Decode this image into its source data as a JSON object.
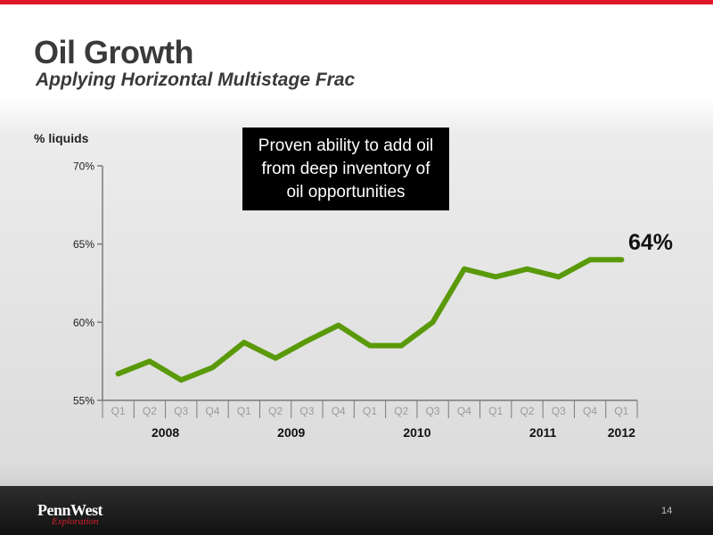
{
  "header": {
    "title": "Oil Growth",
    "subtitle": "Applying Horizontal Multistage Frac"
  },
  "callout": {
    "text": "Proven ability to add oil\nfrom deep inventory of\noil opportunities"
  },
  "footer": {
    "logo_main": "PennWest",
    "logo_sub": "Exploration",
    "page_number": "14"
  },
  "colors": {
    "accent_bar": "#e0192a",
    "series_line": "#5a9a0a"
  },
  "chart_data": {
    "type": "line",
    "title": "",
    "ylabel": "% liquids",
    "xlabel": "",
    "ylim": [
      55,
      70
    ],
    "yticks": [
      "55%",
      "60%",
      "65%",
      "70%"
    ],
    "ytick_values": [
      55,
      60,
      65,
      70
    ],
    "categories": [
      "Q1",
      "Q2",
      "Q3",
      "Q4",
      "Q1",
      "Q2",
      "Q3",
      "Q4",
      "Q1",
      "Q2",
      "Q3",
      "Q4",
      "Q1",
      "Q2",
      "Q3",
      "Q4",
      "Q1"
    ],
    "year_groups": [
      {
        "label": "2008",
        "start": 0,
        "count": 4
      },
      {
        "label": "2009",
        "start": 4,
        "count": 4
      },
      {
        "label": "2010",
        "start": 8,
        "count": 4
      },
      {
        "label": "2011",
        "start": 12,
        "count": 4
      },
      {
        "label": "2012",
        "start": 16,
        "count": 1
      }
    ],
    "series": [
      {
        "values": [
          56.7,
          57.5,
          56.3,
          57.1,
          58.7,
          57.7,
          58.8,
          59.8,
          58.5,
          58.5,
          60.0,
          63.4,
          62.9,
          63.4,
          62.9,
          64.0,
          64.0
        ]
      }
    ],
    "end_label": "64%",
    "grid": false,
    "legend": "none"
  }
}
